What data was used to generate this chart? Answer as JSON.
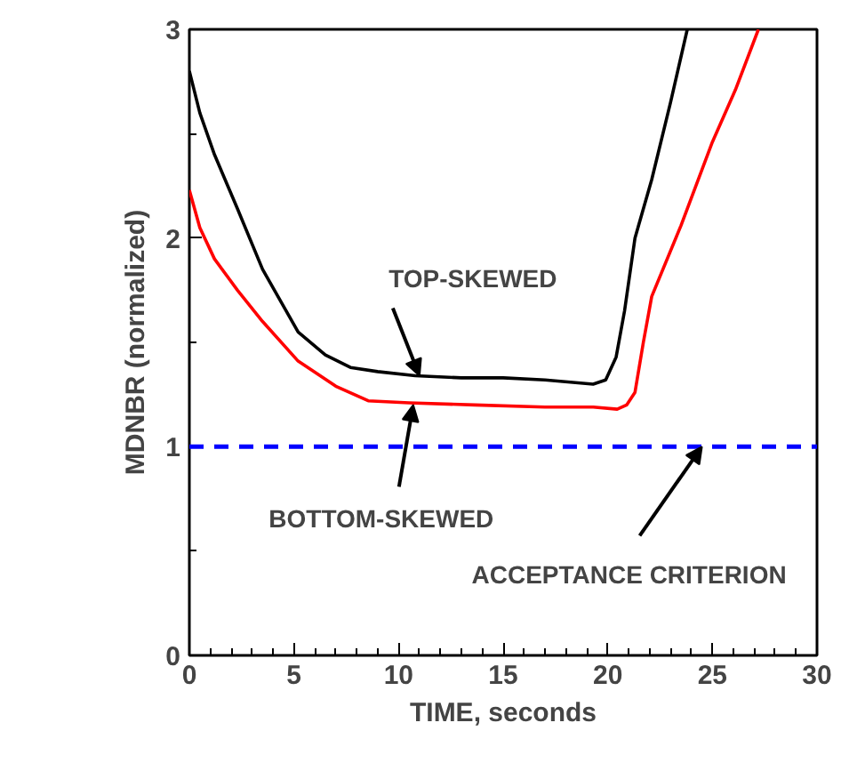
{
  "chart_data": {
    "type": "line",
    "xlabel": "TIME, seconds",
    "ylabel": "MDNBR (normalized)",
    "xlim": [
      0,
      30
    ],
    "ylim": [
      0,
      3
    ],
    "xticks": [
      0,
      5,
      10,
      15,
      20,
      25,
      30
    ],
    "yticks": [
      0,
      1,
      2,
      3
    ],
    "grid": false,
    "series": [
      {
        "color": "#000000",
        "x": [
          0,
          0.5,
          1.2,
          2.3,
          3.5,
          5.2,
          6.5,
          7.7,
          9,
          10.8,
          13,
          15,
          17,
          19.3,
          19.9,
          20.4,
          20.8,
          21.3,
          22.1,
          23,
          23.8
        ],
        "values": [
          2.8,
          2.6,
          2.4,
          2.14,
          1.85,
          1.55,
          1.44,
          1.38,
          1.36,
          1.34,
          1.33,
          1.33,
          1.32,
          1.3,
          1.32,
          1.43,
          1.65,
          2.0,
          2.28,
          2.65,
          3.0
        ]
      },
      {
        "color": "#ff0000",
        "x": [
          0,
          0.5,
          1.2,
          2.3,
          3.5,
          5.2,
          7,
          8.55,
          10.5,
          13.65,
          17,
          19.3,
          20.45,
          20.9,
          21.3,
          21.7,
          22.1,
          23.5,
          25,
          26.1,
          27.2
        ],
        "values": [
          2.23,
          2.05,
          1.9,
          1.75,
          1.6,
          1.41,
          1.29,
          1.22,
          1.21,
          1.2,
          1.19,
          1.19,
          1.18,
          1.2,
          1.26,
          1.5,
          1.72,
          2.06,
          2.46,
          2.71,
          3.0
        ]
      }
    ],
    "ref_lines": [
      {
        "axis": "y",
        "value": 1,
        "color": "#0000ff",
        "line_style": "dashed"
      }
    ],
    "annotations": [
      {
        "text": "TOP-SKEWED",
        "x": 11,
        "y": 1.34
      },
      {
        "text": "BOTTOM-SKEWED",
        "x": 10.7,
        "y": 1.2
      },
      {
        "text": "ACCEPTANCE CRITERION",
        "x": 24.5,
        "y": 1
      }
    ]
  }
}
